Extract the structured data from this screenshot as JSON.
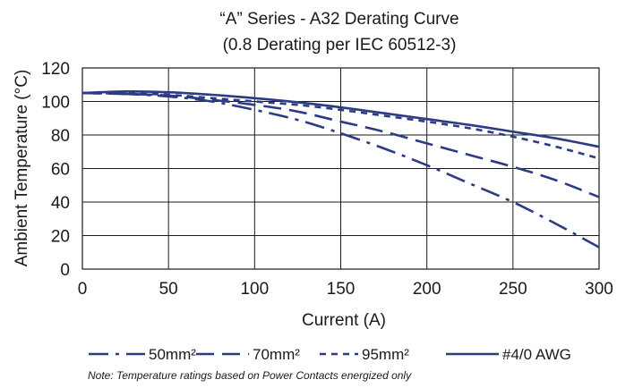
{
  "chart_data": {
    "type": "line",
    "title": "“A” Series - A32 Derating Curve",
    "subtitle": "(0.8 Derating per IEC 60512-3)",
    "xlabel": "Current (A)",
    "ylabel": "Ambient Temperature (°C)",
    "xlim": [
      0,
      300
    ],
    "ylim": [
      0,
      120
    ],
    "x_ticks": [
      0,
      50,
      100,
      150,
      200,
      250,
      300
    ],
    "y_ticks": [
      0,
      20,
      40,
      60,
      80,
      100,
      120
    ],
    "grid": true,
    "legend_position": "bottom",
    "line_color": "#2b3b84",
    "series": [
      {
        "name": "50mm²",
        "dash": "dash-dot",
        "x": [
          0,
          25,
          50,
          75,
          100,
          125,
          150,
          175,
          200,
          225,
          250,
          275,
          300
        ],
        "y": [
          105,
          104.5,
          103,
          100,
          95,
          89,
          81,
          72,
          62,
          51,
          40,
          27,
          13
        ]
      },
      {
        "name": "70mm²",
        "dash": "long-dash",
        "x": [
          0,
          25,
          50,
          75,
          100,
          125,
          150,
          175,
          200,
          225,
          250,
          275,
          300
        ],
        "y": [
          105,
          104.5,
          103.5,
          101,
          98,
          94,
          88,
          82,
          75,
          68,
          61,
          53,
          43
        ]
      },
      {
        "name": "95mm²",
        "dash": "short-dash",
        "x": [
          0,
          25,
          50,
          75,
          100,
          125,
          150,
          175,
          200,
          225,
          250,
          275,
          300
        ],
        "y": [
          105,
          104.8,
          104,
          102,
          100,
          98,
          95,
          91.5,
          88,
          84,
          79,
          73,
          66
        ]
      },
      {
        "name": "#4/0 AWG",
        "dash": "solid",
        "x": [
          0,
          25,
          50,
          75,
          100,
          125,
          150,
          175,
          200,
          225,
          250,
          275,
          300
        ],
        "y": [
          105,
          106,
          105.5,
          104,
          102,
          99.5,
          96.5,
          93,
          89.5,
          86,
          82,
          78,
          73
        ]
      }
    ],
    "note": "Note: Temperature ratings based on Power Contacts energized only"
  }
}
